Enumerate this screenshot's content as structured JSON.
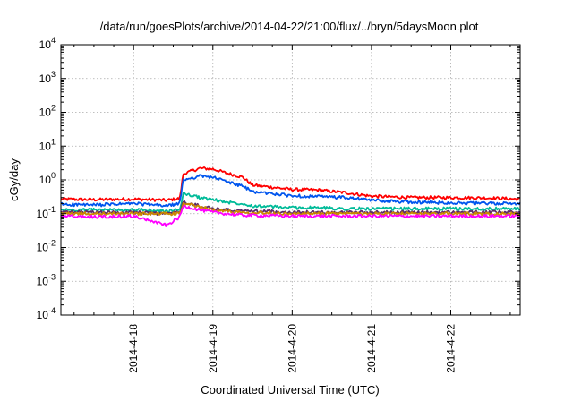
{
  "chart_data": {
    "type": "line",
    "title": "/data/run/goesPlots/archive/2014-04-22/21:00/flux/../bryn/5daysMoon.plot",
    "xlabel": "Coordinated Universal Time (UTC)",
    "ylabel": "cGy/day",
    "yscale": "log",
    "ylim": [
      0.0001,
      10000
    ],
    "xlim": [
      "2014-04-17T02:00",
      "2014-04-22T21:00"
    ],
    "grid": true,
    "legend": "none",
    "yticks": [
      {
        "base": "10",
        "exp": "-4"
      },
      {
        "base": "10",
        "exp": "-3"
      },
      {
        "base": "10",
        "exp": "-2"
      },
      {
        "base": "10",
        "exp": "-1"
      },
      {
        "base": "10",
        "exp": "0"
      },
      {
        "base": "10",
        "exp": "1"
      },
      {
        "base": "10",
        "exp": "2"
      },
      {
        "base": "10",
        "exp": "3"
      },
      {
        "base": "10",
        "exp": "4"
      }
    ],
    "xticks": [
      {
        "label": "2014-4-18",
        "t": "2014-04-18T00:00"
      },
      {
        "label": "2014-4-19",
        "t": "2014-04-19T00:00"
      },
      {
        "label": "2014-4-20",
        "t": "2014-04-20T00:00"
      },
      {
        "label": "2014-4-21",
        "t": "2014-04-21T00:00"
      },
      {
        "label": "2014-4-22",
        "t": "2014-04-22T00:00"
      }
    ],
    "series": [
      {
        "color": "#ff0000",
        "x": [
          "2014-04-17T02:00",
          "2014-04-17T12:00",
          "2014-04-18T00:00",
          "2014-04-18T10:00",
          "2014-04-18T14:00",
          "2014-04-18T15:00",
          "2014-04-18T20:00",
          "2014-04-19T00:00",
          "2014-04-19T04:00",
          "2014-04-19T09:00",
          "2014-04-19T12:00",
          "2014-04-20T00:00",
          "2014-04-20T08:00",
          "2014-04-20T16:00",
          "2014-04-21T00:00",
          "2014-04-21T12:00",
          "2014-04-22T00:00",
          "2014-04-22T12:00",
          "2014-04-22T21:00"
        ],
        "y": [
          0.27,
          0.26,
          0.27,
          0.25,
          0.28,
          1.5,
          2.2,
          2.1,
          1.6,
          1.2,
          0.7,
          0.52,
          0.5,
          0.42,
          0.33,
          0.3,
          0.3,
          0.29,
          0.27
        ]
      },
      {
        "color": "#0055ee",
        "x": [
          "2014-04-17T02:00",
          "2014-04-17T12:00",
          "2014-04-18T00:00",
          "2014-04-18T10:00",
          "2014-04-18T14:00",
          "2014-04-18T15:00",
          "2014-04-18T20:00",
          "2014-04-19T00:00",
          "2014-04-19T04:00",
          "2014-04-19T09:00",
          "2014-04-19T12:00",
          "2014-04-20T00:00",
          "2014-04-20T08:00",
          "2014-04-20T16:00",
          "2014-04-21T00:00",
          "2014-04-21T12:00",
          "2014-04-22T00:00",
          "2014-04-22T12:00",
          "2014-04-22T21:00"
        ],
        "y": [
          0.19,
          0.18,
          0.2,
          0.17,
          0.2,
          1.0,
          1.3,
          1.2,
          0.9,
          0.65,
          0.45,
          0.34,
          0.32,
          0.3,
          0.25,
          0.22,
          0.21,
          0.2,
          0.2
        ]
      },
      {
        "color": "#00bb99",
        "x": [
          "2014-04-17T02:00",
          "2014-04-17T12:00",
          "2014-04-18T00:00",
          "2014-04-18T10:00",
          "2014-04-18T14:00",
          "2014-04-18T15:00",
          "2014-04-18T20:00",
          "2014-04-19T00:00",
          "2014-04-19T04:00",
          "2014-04-19T09:00",
          "2014-04-19T12:00",
          "2014-04-20T00:00",
          "2014-04-20T08:00",
          "2014-04-20T16:00",
          "2014-04-21T00:00",
          "2014-04-21T12:00",
          "2014-04-22T00:00",
          "2014-04-22T12:00",
          "2014-04-22T21:00"
        ],
        "y": [
          0.13,
          0.13,
          0.13,
          0.12,
          0.13,
          0.4,
          0.3,
          0.26,
          0.22,
          0.2,
          0.17,
          0.15,
          0.15,
          0.14,
          0.14,
          0.14,
          0.14,
          0.14,
          0.14
        ]
      },
      {
        "color": "#5b2a6a",
        "x": [
          "2014-04-17T02:00",
          "2014-04-17T12:00",
          "2014-04-18T00:00",
          "2014-04-18T10:00",
          "2014-04-18T14:00",
          "2014-04-18T15:00",
          "2014-04-18T20:00",
          "2014-04-19T00:00",
          "2014-04-19T04:00",
          "2014-04-19T09:00",
          "2014-04-19T12:00",
          "2014-04-20T00:00",
          "2014-04-20T08:00",
          "2014-04-20T16:00",
          "2014-04-21T00:00",
          "2014-04-21T12:00",
          "2014-04-22T00:00",
          "2014-04-22T12:00",
          "2014-04-22T21:00"
        ],
        "y": [
          0.11,
          0.11,
          0.11,
          0.1,
          0.11,
          0.22,
          0.17,
          0.14,
          0.13,
          0.12,
          0.12,
          0.11,
          0.11,
          0.11,
          0.11,
          0.11,
          0.11,
          0.11,
          0.11
        ]
      },
      {
        "color": "#cc8800",
        "x": [
          "2014-04-17T02:00",
          "2014-04-17T12:00",
          "2014-04-18T00:00",
          "2014-04-18T10:00",
          "2014-04-18T14:00",
          "2014-04-18T15:00",
          "2014-04-18T20:00",
          "2014-04-19T00:00",
          "2014-04-19T04:00",
          "2014-04-19T09:00",
          "2014-04-19T12:00",
          "2014-04-20T00:00",
          "2014-04-20T08:00",
          "2014-04-20T16:00",
          "2014-04-21T00:00",
          "2014-04-21T12:00",
          "2014-04-22T00:00",
          "2014-04-22T12:00",
          "2014-04-22T21:00"
        ],
        "y": [
          0.1,
          0.1,
          0.1,
          0.1,
          0.1,
          0.2,
          0.16,
          0.13,
          0.12,
          0.11,
          0.11,
          0.1,
          0.1,
          0.1,
          0.1,
          0.1,
          0.1,
          0.1,
          0.1
        ]
      },
      {
        "color": "#ff00ff",
        "x": [
          "2014-04-17T02:00",
          "2014-04-17T12:00",
          "2014-04-18T00:00",
          "2014-04-18T10:00",
          "2014-04-18T14:00",
          "2014-04-18T15:00",
          "2014-04-18T20:00",
          "2014-04-19T00:00",
          "2014-04-19T04:00",
          "2014-04-19T09:00",
          "2014-04-19T12:00",
          "2014-04-20T00:00",
          "2014-04-20T08:00",
          "2014-04-20T16:00",
          "2014-04-21T00:00",
          "2014-04-21T12:00",
          "2014-04-22T00:00",
          "2014-04-22T12:00",
          "2014-04-22T21:00"
        ],
        "y": [
          0.085,
          0.08,
          0.085,
          0.045,
          0.08,
          0.17,
          0.13,
          0.11,
          0.1,
          0.09,
          0.09,
          0.085,
          0.085,
          0.085,
          0.085,
          0.085,
          0.085,
          0.085,
          0.085
        ]
      }
    ]
  }
}
